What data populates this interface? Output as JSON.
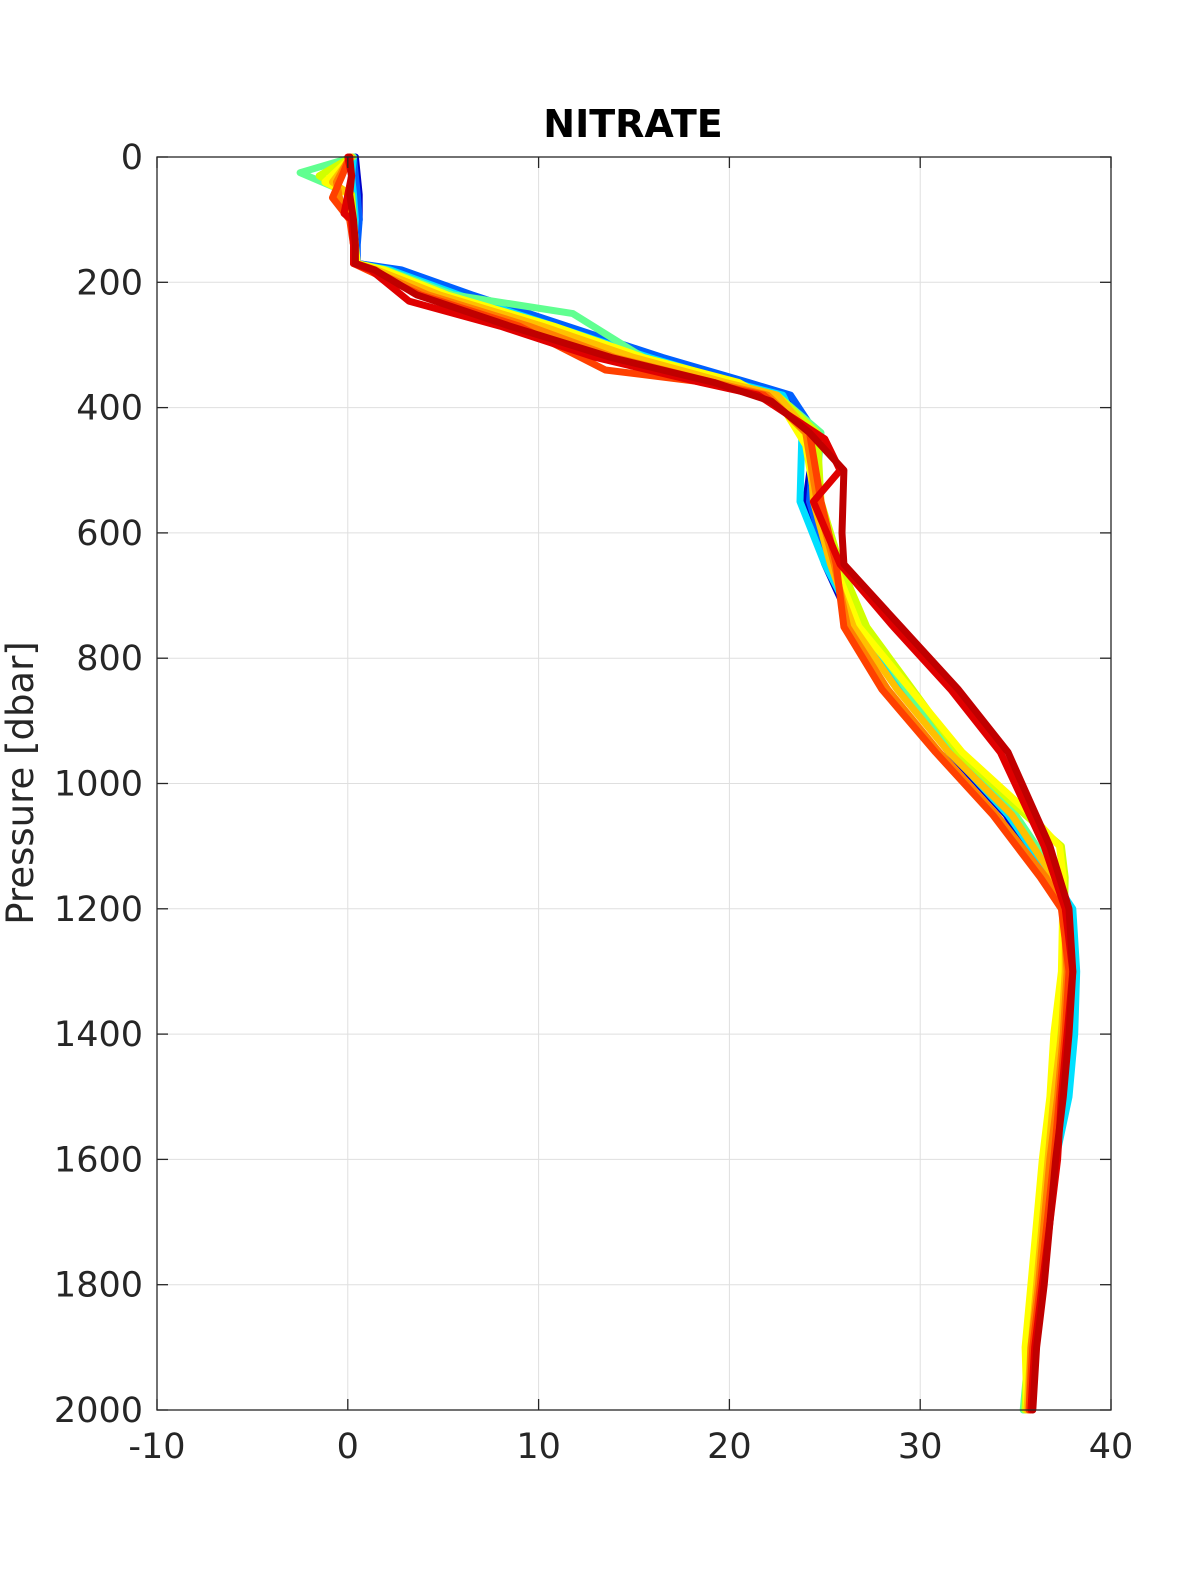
{
  "chart_data": {
    "type": "line",
    "title": "NITRATE",
    "xlabel": "",
    "ylabel": "Pressure [dbar]",
    "xlim": [
      -10,
      40
    ],
    "ylim": [
      0,
      2000
    ],
    "y_reversed": true,
    "grid": true,
    "legend": "none",
    "x_ticks": [
      "-10",
      "0",
      "10",
      "20",
      "30",
      "40"
    ],
    "y_ticks": [
      "0",
      "200",
      "400",
      "600",
      "800",
      "1000",
      "1200",
      "1400",
      "1600",
      "1800",
      "2000"
    ],
    "series": [
      {
        "color": "#0000c8",
        "x": [
          0.4,
          0.5,
          0.6,
          0.6,
          0.4,
          0.5,
          2.5,
          6.0,
          11.0,
          16.0,
          20.5,
          23.0,
          24.5,
          24.0,
          25.0,
          26.5,
          29.0,
          31.5,
          34.5,
          36.5,
          37.5,
          37.8,
          37.8,
          37.5,
          37.0,
          36.2,
          35.8,
          35.6
        ],
        "y": [
          0,
          30,
          60,
          100,
          140,
          170,
          180,
          220,
          270,
          320,
          360,
          380,
          440,
          550,
          650,
          750,
          850,
          950,
          1050,
          1150,
          1200,
          1300,
          1400,
          1500,
          1600,
          1800,
          1900,
          2000
        ]
      },
      {
        "color": "#0060ff",
        "x": [
          0.3,
          0.4,
          0.5,
          0.6,
          0.5,
          0.5,
          2.8,
          6.5,
          11.5,
          16.5,
          21.0,
          23.2,
          24.5,
          24.2,
          25.2,
          26.8,
          29.2,
          31.8,
          34.8,
          36.8,
          37.7,
          37.9,
          37.7,
          37.4,
          36.9,
          36.1,
          35.7,
          35.5
        ],
        "y": [
          0,
          30,
          60,
          100,
          140,
          170,
          180,
          220,
          270,
          320,
          360,
          380,
          440,
          550,
          650,
          750,
          850,
          950,
          1050,
          1150,
          1200,
          1300,
          1400,
          1500,
          1600,
          1800,
          1900,
          2000
        ]
      },
      {
        "color": "#00e0ff",
        "x": [
          0.3,
          0.2,
          0.3,
          0.4,
          0.3,
          0.4,
          2.2,
          5.8,
          10.8,
          15.8,
          20.2,
          22.8,
          23.8,
          23.7,
          25.0,
          26.7,
          29.1,
          31.6,
          34.6,
          36.9,
          38.0,
          38.2,
          38.1,
          37.8,
          37.1,
          36.3,
          35.9,
          35.5
        ],
        "y": [
          0,
          30,
          60,
          100,
          140,
          170,
          180,
          220,
          270,
          320,
          360,
          380,
          440,
          550,
          650,
          750,
          850,
          950,
          1050,
          1150,
          1200,
          1300,
          1400,
          1500,
          1600,
          1800,
          1900,
          2000
        ]
      },
      {
        "color": "#60ff90",
        "x": [
          0.3,
          -2.5,
          0.2,
          0.3,
          0.3,
          0.4,
          2.0,
          5.5,
          11.8,
          15.5,
          20.0,
          22.5,
          24.8,
          24.5,
          25.5,
          27.0,
          29.3,
          31.8,
          35.0,
          37.2,
          37.8,
          37.8,
          37.6,
          37.3,
          36.8,
          36.0,
          35.7,
          35.4
        ],
        "y": [
          0,
          25,
          60,
          100,
          140,
          170,
          180,
          220,
          250,
          320,
          360,
          380,
          440,
          550,
          650,
          750,
          850,
          950,
          1050,
          1150,
          1200,
          1300,
          1400,
          1500,
          1600,
          1800,
          1900,
          2000
        ]
      },
      {
        "color": "#d0ff00",
        "x": [
          0.2,
          -1.5,
          0.2,
          0.3,
          0.4,
          0.4,
          1.8,
          5.0,
          10.5,
          15.0,
          19.8,
          22.5,
          24.6,
          24.8,
          25.8,
          27.2,
          29.6,
          32.0,
          35.5,
          37.4,
          37.6,
          37.5,
          37.2,
          37.0,
          36.6,
          36.0,
          35.6,
          35.5
        ],
        "y": [
          0,
          30,
          60,
          100,
          140,
          170,
          180,
          220,
          270,
          320,
          360,
          380,
          440,
          550,
          650,
          750,
          850,
          950,
          1050,
          1100,
          1150,
          1300,
          1400,
          1500,
          1600,
          1800,
          1900,
          2000
        ]
      },
      {
        "color": "#ffff00",
        "x": [
          0.2,
          -1.2,
          0.1,
          0.3,
          0.4,
          0.5,
          1.9,
          5.2,
          10.8,
          15.5,
          20.5,
          22.8,
          24.0,
          24.5,
          25.5,
          26.8,
          29.5,
          32.2,
          35.8,
          37.3,
          37.5,
          37.4,
          37.0,
          36.8,
          36.4,
          35.8,
          35.5,
          35.6
        ],
        "y": [
          0,
          40,
          60,
          100,
          140,
          170,
          180,
          220,
          270,
          320,
          360,
          400,
          460,
          550,
          650,
          750,
          850,
          950,
          1050,
          1100,
          1150,
          1300,
          1400,
          1500,
          1600,
          1800,
          1900,
          2000
        ]
      },
      {
        "color": "#ffc000",
        "x": [
          0.2,
          -0.8,
          0.1,
          0.2,
          0.3,
          0.4,
          1.5,
          4.8,
          10.2,
          15.0,
          19.8,
          22.5,
          24.2,
          24.4,
          25.3,
          26.5,
          28.8,
          31.5,
          34.8,
          37.0,
          37.6,
          37.6,
          37.4,
          37.0,
          36.7,
          36.1,
          35.8,
          35.6
        ],
        "y": [
          0,
          40,
          60,
          100,
          140,
          170,
          180,
          220,
          270,
          320,
          360,
          380,
          440,
          550,
          650,
          750,
          850,
          950,
          1050,
          1150,
          1200,
          1300,
          1400,
          1500,
          1600,
          1800,
          1900,
          2000
        ]
      },
      {
        "color": "#ff8000",
        "x": [
          0.1,
          -0.6,
          -0.4,
          0.2,
          0.3,
          0.3,
          1.2,
          4.2,
          9.5,
          14.0,
          19.2,
          22.0,
          24.0,
          24.6,
          25.5,
          26.2,
          28.3,
          31.0,
          34.0,
          36.6,
          37.5,
          37.7,
          37.5,
          37.2,
          36.8,
          36.2,
          35.8,
          35.7
        ],
        "y": [
          0,
          40,
          70,
          100,
          140,
          170,
          180,
          220,
          270,
          320,
          360,
          380,
          440,
          550,
          650,
          750,
          850,
          950,
          1050,
          1150,
          1200,
          1300,
          1400,
          1500,
          1600,
          1800,
          1900,
          2000
        ]
      },
      {
        "color": "#ff4000",
        "x": [
          0.1,
          -0.3,
          -0.8,
          0.1,
          0.3,
          0.3,
          1.0,
          3.8,
          9.0,
          13.5,
          18.8,
          21.8,
          24.2,
          24.8,
          25.6,
          26.0,
          28.0,
          30.8,
          33.8,
          36.3,
          37.4,
          37.8,
          37.6,
          37.3,
          37.0,
          36.3,
          35.9,
          35.7
        ],
        "y": [
          0,
          30,
          65,
          100,
          140,
          170,
          180,
          220,
          270,
          340,
          360,
          380,
          440,
          550,
          650,
          750,
          850,
          950,
          1050,
          1150,
          1200,
          1300,
          1400,
          1500,
          1600,
          1800,
          1900,
          2000
        ]
      },
      {
        "color": "#e00000",
        "x": [
          0.0,
          0.2,
          -0.2,
          0.2,
          0.3,
          0.3,
          1.2,
          3.2,
          8.0,
          13.0,
          18.5,
          21.5,
          25.0,
          25.8,
          24.4,
          25.8,
          28.6,
          31.6,
          34.2,
          36.5,
          37.6,
          38.0,
          37.7,
          37.4,
          37.2,
          36.4,
          36.0,
          35.8
        ],
        "y": [
          0,
          30,
          90,
          100,
          140,
          170,
          180,
          230,
          270,
          320,
          360,
          380,
          450,
          500,
          550,
          650,
          750,
          850,
          950,
          1100,
          1200,
          1300,
          1400,
          1500,
          1600,
          1800,
          1900,
          2000
        ]
      },
      {
        "color": "#c00000",
        "x": [
          0.1,
          0.2,
          0.1,
          0.3,
          0.4,
          0.4,
          1.4,
          3.6,
          8.5,
          13.8,
          19.2,
          22.2,
          24.2,
          26.0,
          25.9,
          26.0,
          29.0,
          32.0,
          34.6,
          36.8,
          37.8,
          38.0,
          37.8,
          37.5,
          37.1,
          36.5,
          36.1,
          35.9
        ],
        "y": [
          0,
          30,
          60,
          100,
          140,
          170,
          180,
          220,
          270,
          320,
          360,
          390,
          440,
          500,
          600,
          650,
          750,
          850,
          950,
          1100,
          1200,
          1300,
          1400,
          1500,
          1600,
          1800,
          1900,
          2000
        ]
      }
    ]
  }
}
